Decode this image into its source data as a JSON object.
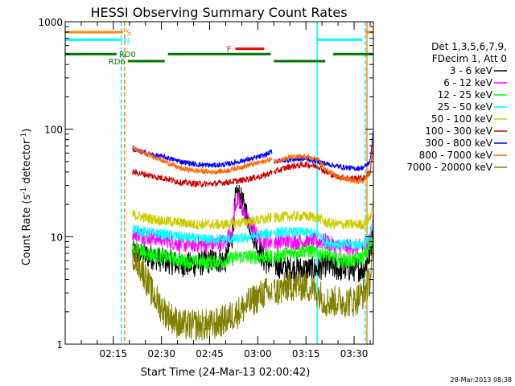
{
  "chart_data": {
    "type": "line",
    "title": "HESSI Observing Summary Count Rates",
    "xlabel": "Start Time (24-Mar-13 02:00:42)",
    "ylabel_pre": "Count Rate (s",
    "ylabel_sup": "-1",
    "ylabel_mid": " detector",
    "ylabel_sup2": "-1",
    "ylabel_post": ")",
    "ylabel": "Count Rate (s-1 detector-1)",
    "yscale": "log",
    "ylim": [
      1,
      1000
    ],
    "xlim_minutes": [
      0,
      96
    ],
    "xticks": [
      {
        "m": 15,
        "label": "02:15"
      },
      {
        "m": 30,
        "label": "02:30"
      },
      {
        "m": 45,
        "label": "02:45"
      },
      {
        "m": 60,
        "label": "03:00"
      },
      {
        "m": 75,
        "label": "03:15"
      },
      {
        "m": 90,
        "label": "03:30"
      }
    ],
    "yticks": [
      {
        "v": 1,
        "label": "1"
      },
      {
        "v": 10,
        "label": "10"
      },
      {
        "v": 100,
        "label": "100"
      },
      {
        "v": 1000,
        "label": "1000"
      }
    ],
    "legend_header": [
      "Det 1,3,5,6,7,9,",
      "FDecim 1, Att 0"
    ],
    "legend_placement": "right",
    "timestamp": "28-Mar-2013 08:38",
    "flags": {
      "S": {
        "label": "S",
        "color": "#ff8800",
        "value": 800,
        "segments": [
          [
            0,
            18
          ],
          [
            93.5,
            96
          ]
        ]
      },
      "N": {
        "label": "N",
        "color": "#00ffff",
        "value": 680,
        "segments": [
          [
            0,
            17.5
          ],
          [
            78.5,
            92.5
          ]
        ]
      },
      "F": {
        "label": "F",
        "color": "#ff0000",
        "value": 560,
        "segments": [
          [
            53,
            62
          ]
        ]
      },
      "RD0": {
        "label": "RD0",
        "color": "#007700",
        "value": 500,
        "segments": [
          [
            0,
            16
          ],
          [
            32,
            64
          ],
          [
            83.5,
            96
          ]
        ]
      },
      "RD6": {
        "label": "RD6",
        "color": "#007700",
        "value": 430,
        "segments": [
          [
            19.5,
            31
          ],
          [
            65,
            81
          ]
        ]
      }
    },
    "markers": [
      {
        "m": 17.5,
        "color": "#00ffff",
        "style": "dashed"
      },
      {
        "m": 18.5,
        "color": "#ff8800",
        "style": "dashed"
      },
      {
        "m": 78.5,
        "color": "#00ffff",
        "style": "solid"
      },
      {
        "m": 93.5,
        "color": "#00ffff",
        "style": "dashed"
      },
      {
        "m": 94,
        "color": "#ff8800",
        "style": "solid"
      }
    ],
    "segments": [
      [
        21,
        64.5
      ],
      [
        65,
        96
      ]
    ],
    "series": [
      {
        "name": "3 - 6 keV",
        "color": "#000000",
        "points": [
          [
            21,
            7
          ],
          [
            27,
            6.5
          ],
          [
            31,
            6
          ],
          [
            36,
            5.5
          ],
          [
            41,
            5.5
          ],
          [
            46,
            6
          ],
          [
            50,
            6
          ],
          [
            52,
            10
          ],
          [
            53,
            22
          ],
          [
            54,
            25
          ],
          [
            56,
            18
          ],
          [
            58,
            12
          ],
          [
            60,
            8
          ],
          [
            62,
            6
          ],
          [
            64.5,
            5.5
          ],
          [
            65,
            5.5
          ],
          [
            70,
            5
          ],
          [
            75,
            5
          ],
          [
            79,
            5
          ],
          [
            81,
            5.5
          ],
          [
            85,
            5
          ],
          [
            90,
            5
          ],
          [
            93,
            5
          ],
          [
            95,
            7
          ],
          [
            96,
            12
          ]
        ]
      },
      {
        "name": "6 - 12 keV",
        "color": "#ff00ff",
        "points": [
          [
            21,
            11
          ],
          [
            25,
            10
          ],
          [
            31,
            9.5
          ],
          [
            36,
            8.5
          ],
          [
            41,
            8.5
          ],
          [
            46,
            8.5
          ],
          [
            50,
            9
          ],
          [
            52,
            12
          ],
          [
            53,
            20
          ],
          [
            54,
            22
          ],
          [
            56,
            16
          ],
          [
            58,
            12
          ],
          [
            60,
            10
          ],
          [
            62,
            9
          ],
          [
            64.5,
            9
          ],
          [
            65,
            9
          ],
          [
            70,
            9
          ],
          [
            75,
            9
          ],
          [
            79,
            9
          ],
          [
            81,
            9
          ],
          [
            85,
            8
          ],
          [
            90,
            8
          ],
          [
            93,
            8
          ],
          [
            95,
            10
          ],
          [
            96,
            14
          ]
        ]
      },
      {
        "name": "12 - 25 keV",
        "color": "#00ff00",
        "points": [
          [
            21,
            8
          ],
          [
            25,
            7
          ],
          [
            31,
            6.5
          ],
          [
            36,
            6
          ],
          [
            41,
            5.8
          ],
          [
            46,
            5.8
          ],
          [
            50,
            6
          ],
          [
            54,
            6.5
          ],
          [
            58,
            6.5
          ],
          [
            62,
            6.5
          ],
          [
            64.5,
            6.5
          ],
          [
            65,
            6.5
          ],
          [
            70,
            7
          ],
          [
            75,
            7.5
          ],
          [
            79,
            7
          ],
          [
            81,
            7
          ],
          [
            85,
            6
          ],
          [
            90,
            6
          ],
          [
            93,
            6.5
          ],
          [
            95,
            8
          ],
          [
            96,
            10
          ]
        ]
      },
      {
        "name": "25 - 50 keV",
        "color": "#00ffff",
        "points": [
          [
            21,
            12
          ],
          [
            25,
            11
          ],
          [
            31,
            10.5
          ],
          [
            36,
            10
          ],
          [
            41,
            9.5
          ],
          [
            46,
            9.5
          ],
          [
            50,
            9.5
          ],
          [
            54,
            9.5
          ],
          [
            58,
            10
          ],
          [
            62,
            10.5
          ],
          [
            64.5,
            11
          ],
          [
            65,
            11
          ],
          [
            70,
            11
          ],
          [
            75,
            11
          ],
          [
            79,
            10.5
          ],
          [
            81,
            9
          ],
          [
            85,
            8.5
          ],
          [
            90,
            8.5
          ],
          [
            93,
            8.5
          ],
          [
            95,
            10
          ],
          [
            96,
            14
          ]
        ]
      },
      {
        "name": "50 - 100 keV",
        "color": "#cccc00",
        "points": [
          [
            21,
            16
          ],
          [
            25,
            15
          ],
          [
            31,
            14
          ],
          [
            36,
            13.5
          ],
          [
            41,
            13
          ],
          [
            46,
            13
          ],
          [
            50,
            13
          ],
          [
            54,
            13.5
          ],
          [
            58,
            14
          ],
          [
            62,
            14.5
          ],
          [
            64.5,
            15
          ],
          [
            65,
            15
          ],
          [
            70,
            15.5
          ],
          [
            75,
            15.5
          ],
          [
            79,
            15
          ],
          [
            81,
            13.5
          ],
          [
            85,
            13
          ],
          [
            90,
            13
          ],
          [
            93,
            13
          ],
          [
            95,
            15
          ],
          [
            96,
            20
          ]
        ]
      },
      {
        "name": "100 - 300 keV",
        "color": "#cc0000",
        "points": [
          [
            21,
            40
          ],
          [
            25,
            38
          ],
          [
            28,
            36
          ],
          [
            31,
            35
          ],
          [
            36,
            32
          ],
          [
            41,
            31
          ],
          [
            46,
            31
          ],
          [
            50,
            32
          ],
          [
            54,
            33
          ],
          [
            58,
            35
          ],
          [
            62,
            37
          ],
          [
            64.5,
            40
          ],
          [
            65,
            40
          ],
          [
            70,
            45
          ],
          [
            75,
            47
          ],
          [
            79,
            45
          ],
          [
            81,
            40
          ],
          [
            85,
            36
          ],
          [
            90,
            35
          ],
          [
            93,
            35
          ],
          [
            95,
            40
          ],
          [
            96,
            70
          ]
        ]
      },
      {
        "name": "300 - 800 keV",
        "color": "#0000ff",
        "points": [
          [
            21,
            65
          ],
          [
            25,
            60
          ],
          [
            28,
            57
          ],
          [
            31,
            55
          ],
          [
            36,
            50
          ],
          [
            41,
            47
          ],
          [
            46,
            46
          ],
          [
            50,
            47
          ],
          [
            54,
            50
          ],
          [
            58,
            53
          ],
          [
            62,
            57
          ],
          [
            64.5,
            62
          ],
          [
            65,
            50
          ],
          [
            70,
            52
          ],
          [
            75,
            53
          ],
          [
            79,
            50
          ],
          [
            81,
            48
          ],
          [
            85,
            45
          ],
          [
            90,
            43
          ],
          [
            93,
            44
          ],
          [
            95,
            50
          ],
          [
            96,
            100
          ]
        ]
      },
      {
        "name": "800 - 7000 keV",
        "color": "#ff6600",
        "points": [
          [
            21,
            68
          ],
          [
            24,
            60
          ],
          [
            28,
            55
          ],
          [
            31,
            50
          ],
          [
            36,
            43
          ],
          [
            41,
            41
          ],
          [
            46,
            40
          ],
          [
            50,
            41
          ],
          [
            54,
            44
          ],
          [
            58,
            47
          ],
          [
            62,
            50
          ],
          [
            64.5,
            53
          ],
          [
            65,
            50
          ],
          [
            70,
            55
          ],
          [
            75,
            55
          ],
          [
            79,
            52
          ],
          [
            81,
            42
          ],
          [
            85,
            36
          ],
          [
            90,
            33
          ],
          [
            93,
            33
          ],
          [
            95,
            40
          ],
          [
            96,
            80
          ]
        ]
      },
      {
        "name": "7000 - 20000 keV",
        "color": "#808000",
        "points": [
          [
            21,
            7
          ],
          [
            24,
            5
          ],
          [
            27,
            3
          ],
          [
            31,
            2
          ],
          [
            36,
            1.5
          ],
          [
            41,
            1.5
          ],
          [
            46,
            1.5
          ],
          [
            50,
            1.7
          ],
          [
            54,
            2
          ],
          [
            58,
            2.5
          ],
          [
            62,
            3
          ],
          [
            64.5,
            3
          ],
          [
            65,
            3
          ],
          [
            70,
            3.5
          ],
          [
            75,
            3.5
          ],
          [
            79,
            3
          ],
          [
            81,
            2.5
          ],
          [
            85,
            2.5
          ],
          [
            90,
            2.5
          ],
          [
            93,
            3
          ],
          [
            95,
            4
          ],
          [
            96,
            8
          ]
        ]
      }
    ]
  }
}
